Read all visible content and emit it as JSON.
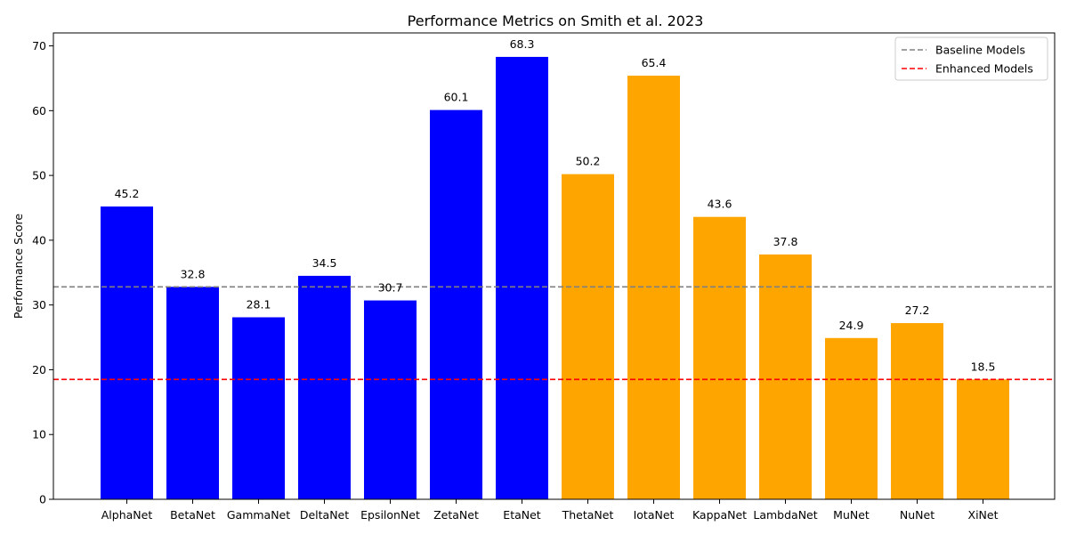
{
  "chart_data": {
    "type": "bar",
    "title": "Performance Metrics on Smith et al. 2023",
    "xlabel": "",
    "ylabel": "Performance Score",
    "ylim": [
      0,
      72
    ],
    "yticks": [
      0,
      10,
      20,
      30,
      40,
      50,
      60,
      70
    ],
    "grid": false,
    "legend_position": "top-right",
    "categories": [
      "AlphaNet",
      "BetaNet",
      "GammaNet",
      "DeltaNet",
      "EpsilonNet",
      "ZetaNet",
      "EtaNet",
      "ThetaNet",
      "IotaNet",
      "KappaNet",
      "LambdaNet",
      "MuNet",
      "NuNet",
      "XiNet"
    ],
    "values": [
      45.2,
      32.8,
      28.1,
      34.5,
      30.7,
      60.1,
      68.3,
      50.2,
      65.4,
      43.6,
      37.8,
      24.9,
      27.2,
      18.5
    ],
    "data_labels": [
      "45.2",
      "32.8",
      "28.1",
      "34.5",
      "30.7",
      "60.1",
      "68.3",
      "50.2",
      "65.4",
      "43.6",
      "37.8",
      "24.9",
      "27.2",
      "18.5"
    ],
    "bar_groups": [
      {
        "indices": [
          0,
          1,
          2,
          3,
          4,
          5,
          6
        ],
        "color": "#0000ff"
      },
      {
        "indices": [
          7,
          8,
          9,
          10,
          11,
          12,
          13
        ],
        "color": "#ffa500"
      }
    ],
    "reference_lines": [
      {
        "name": "Baseline Models",
        "y": 32.8,
        "color": "#808080",
        "style": "dashed"
      },
      {
        "name": "Enhanced Models",
        "y": 18.5,
        "color": "#ff0000",
        "style": "dashed"
      }
    ]
  }
}
